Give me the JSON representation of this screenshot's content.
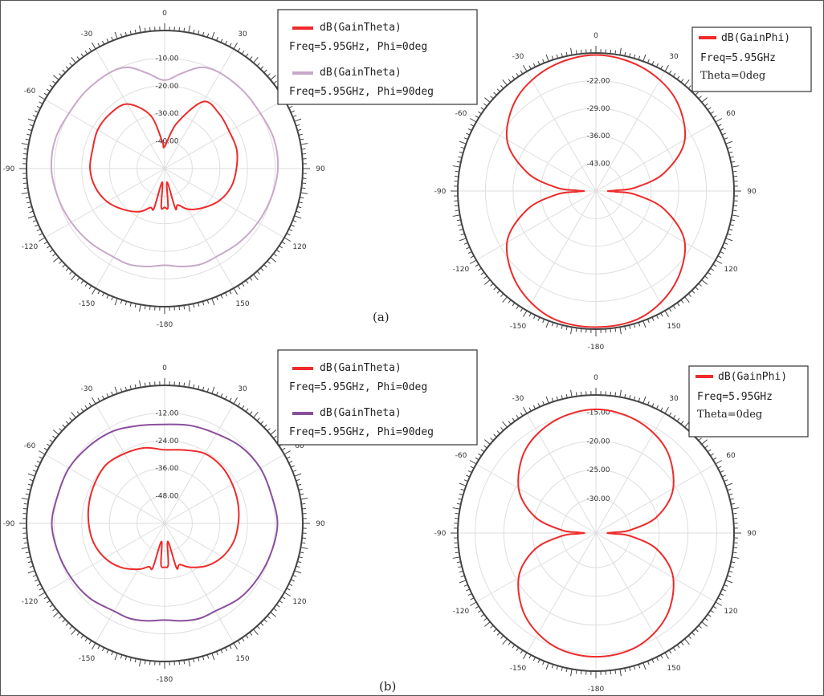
{
  "captions": {
    "a": "(a)",
    "b": "(b)"
  },
  "colors": {
    "red": "#ee2a2a",
    "purple_light": "#c8a8c8",
    "purple_dark": "#8a4f9c",
    "ring": "#444444",
    "grid": "#dedede"
  },
  "chart_data": [
    {
      "type": "polar",
      "angle_ticks": [
        "0",
        "30",
        "60",
        "90",
        "120",
        "150",
        "-180",
        "-150",
        "-120",
        "-90",
        "-60",
        "-30"
      ],
      "radial_ticks": [
        "-10.00",
        "-20.00",
        "-30.00",
        "-40.00"
      ],
      "rlim": [
        -50,
        0
      ],
      "legend": [
        {
          "name": "dB(GainTheta)",
          "detail": "Freq=5.95GHz, Phi=0deg"
        },
        {
          "name": "dB(GainTheta)",
          "detail": "Freq=5.95GHz, Phi=90deg"
        }
      ],
      "series": [
        {
          "name": "dB(GainTheta)",
          "detail": "Freq=5.95GHz, Phi=0deg",
          "color": "#ee2a2a",
          "theta_deg": [
            0,
            15,
            30,
            45,
            60,
            75,
            90,
            105,
            120,
            135,
            150,
            160,
            165,
            170,
            175,
            180,
            185,
            190,
            195,
            200,
            210,
            225,
            240,
            255,
            270,
            285,
            300,
            315,
            330,
            345,
            355
          ],
          "values": [
            -42,
            -33,
            -22,
            -22,
            -23,
            -23,
            -24,
            -25,
            -27,
            -30,
            -33,
            -36,
            -35,
            -45,
            -36,
            -36,
            -36,
            -45,
            -35,
            -35,
            -32,
            -29,
            -26,
            -24,
            -23,
            -23,
            -22,
            -22,
            -23,
            -30,
            -40
          ]
        },
        {
          "name": "dB(GainTheta)",
          "detail": "Freq=5.95GHz, Phi=90deg",
          "color": "#c8a8c8",
          "theta_deg": [
            0,
            10,
            20,
            30,
            45,
            60,
            75,
            90,
            105,
            120,
            135,
            150,
            160,
            170,
            180,
            190,
            200,
            210,
            225,
            240,
            255,
            270,
            285,
            300,
            315,
            330,
            340,
            350
          ],
          "values": [
            -18,
            -15,
            -11,
            -10,
            -10,
            -10,
            -9,
            -9,
            -10,
            -11,
            -12,
            -13,
            -13,
            -14,
            -15,
            -14,
            -13,
            -13,
            -12,
            -11,
            -10,
            -9,
            -9,
            -10,
            -10,
            -10,
            -11,
            -15
          ]
        }
      ]
    },
    {
      "type": "polar",
      "angle_ticks": [
        "0",
        "30",
        "60",
        "90",
        "120",
        "150",
        "-180",
        "-150",
        "-120",
        "-90",
        "-60",
        "-30"
      ],
      "radial_ticks": [
        "-22.00",
        "-29.00",
        "-36.00",
        "-43.00"
      ],
      "rlim": [
        -50,
        -15
      ],
      "legend": [
        {
          "name": "dB(GainPhi)",
          "detail1": "Freq=5.95GHz",
          "detail2": "Theta=0deg"
        }
      ],
      "series": [
        {
          "name": "dB(GainPhi)",
          "detail": "Freq=5.95GHz, Theta=0deg",
          "color": "#ee2a2a",
          "theta_deg": [
            0,
            20,
            40,
            60,
            75,
            85,
            88,
            90,
            92,
            95,
            105,
            120,
            140,
            160,
            180,
            200,
            220,
            240,
            255,
            265,
            268,
            270,
            272,
            275,
            285,
            300,
            320,
            340
          ],
          "values": [
            -15.5,
            -16.5,
            -19,
            -24,
            -32,
            -40,
            -45,
            -47,
            -45,
            -40,
            -32,
            -24,
            -19,
            -16,
            -15.5,
            -16,
            -19,
            -24,
            -32,
            -40,
            -45,
            -47,
            -45,
            -40,
            -32,
            -24,
            -19,
            -16.5
          ]
        }
      ]
    },
    {
      "type": "polar",
      "angle_ticks": [
        "0",
        "30",
        "60",
        "90",
        "120",
        "150",
        "-180",
        "-150",
        "-120",
        "-90",
        "-60",
        "-30"
      ],
      "radial_ticks": [
        "-12.00",
        "-24.00",
        "-36.00",
        "-48.00"
      ],
      "rlim": [
        -60,
        0
      ],
      "legend": [
        {
          "name": "dB(GainTheta)",
          "detail": "Freq=5.95GHz, Phi=0deg"
        },
        {
          "name": "dB(GainTheta)",
          "detail": "Freq=5.95GHz, Phi=90deg"
        }
      ],
      "series": [
        {
          "name": "dB(GainTheta)",
          "detail": "Freq=5.95GHz, Phi=0deg",
          "color": "#ee2a2a",
          "theta_deg": [
            0,
            15,
            30,
            45,
            60,
            75,
            90,
            105,
            120,
            135,
            150,
            160,
            165,
            170,
            175,
            180,
            185,
            190,
            195,
            200,
            210,
            225,
            240,
            255,
            270,
            285,
            300,
            315,
            330,
            345
          ],
          "values": [
            -28,
            -27,
            -25,
            -25,
            -26,
            -27,
            -28,
            -29,
            -31,
            -34,
            -38,
            -41,
            -40,
            -52,
            -42,
            -41,
            -42,
            -52,
            -40,
            -40,
            -37,
            -33,
            -30,
            -28,
            -27,
            -26,
            -25,
            -24,
            -25,
            -26
          ]
        },
        {
          "name": "dB(GainTheta)",
          "detail": "Freq=5.95GHz, Phi=90deg",
          "color": "#8a4f9c",
          "theta_deg": [
            0,
            15,
            30,
            45,
            60,
            75,
            90,
            105,
            120,
            135,
            150,
            160,
            170,
            180,
            190,
            200,
            210,
            225,
            240,
            255,
            270,
            285,
            300,
            315,
            330,
            345
          ],
          "values": [
            -17,
            -16,
            -15,
            -13,
            -12,
            -12,
            -11,
            -12,
            -13,
            -14,
            -16,
            -16,
            -17,
            -18,
            -17,
            -16,
            -16,
            -14,
            -13,
            -12,
            -11,
            -12,
            -12,
            -13,
            -14,
            -16
          ]
        }
      ]
    },
    {
      "type": "polar",
      "angle_ticks": [
        "0",
        "30",
        "60",
        "90",
        "120",
        "150",
        "-180",
        "-150",
        "-120",
        "-90",
        "-60",
        "-30"
      ],
      "radial_ticks": [
        "-15.00",
        "-20.00",
        "-25.00",
        "-30.00"
      ],
      "rlim": [
        -36,
        -12
      ],
      "legend": [
        {
          "name": "dB(GainPhi)",
          "detail1": "Freq=5.95GHz",
          "detail2": "Theta=0deg"
        }
      ],
      "series": [
        {
          "name": "dB(GainPhi)",
          "detail": "Freq=5.95GHz, Theta=0deg",
          "color": "#ee2a2a",
          "theta_deg": [
            0,
            20,
            40,
            60,
            75,
            85,
            88,
            90,
            92,
            95,
            105,
            120,
            140,
            160,
            180,
            200,
            220,
            240,
            255,
            265,
            268,
            270,
            272,
            275,
            285,
            300,
            320,
            340
          ],
          "values": [
            -14.5,
            -15.2,
            -17,
            -20.5,
            -25,
            -30,
            -33,
            -34,
            -33,
            -30,
            -25,
            -20.5,
            -17,
            -15,
            -14.5,
            -15,
            -17,
            -20.5,
            -25,
            -30,
            -33,
            -34,
            -33,
            -30,
            -25,
            -20.5,
            -17,
            -15.2
          ]
        }
      ]
    }
  ]
}
